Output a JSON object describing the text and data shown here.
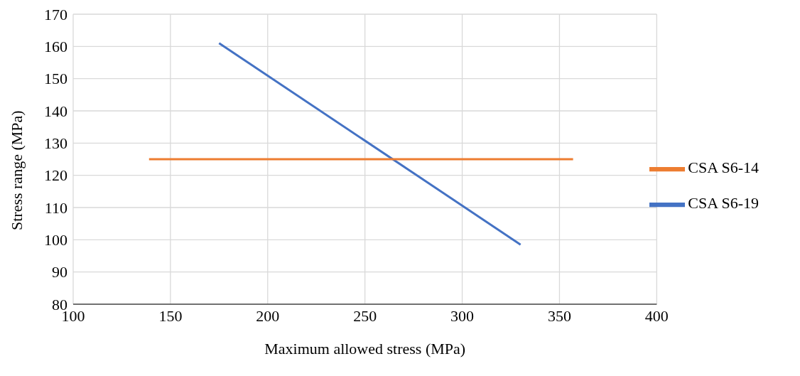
{
  "chart_data": {
    "type": "line",
    "xlabel": "Maximum allowed stress (MPa)",
    "ylabel": "Stress range (MPa)",
    "xlim": [
      100,
      400
    ],
    "xticks": [
      100,
      150,
      200,
      250,
      300,
      350,
      400
    ],
    "ylim": [
      80,
      170
    ],
    "yticks": [
      80,
      90,
      100,
      110,
      120,
      130,
      140,
      150,
      160,
      170
    ],
    "grid": true,
    "legend": "right",
    "marker": "none",
    "line_style": "solid",
    "series": [
      {
        "name": "CSA S6-19",
        "color": "#4472c4",
        "x": [
          175,
          330
        ],
        "values": [
          161,
          98.5
        ]
      },
      {
        "name": "CSA S6-14",
        "color": "#ed7d31",
        "x": [
          139,
          357
        ],
        "values": [
          125,
          125
        ]
      }
    ]
  }
}
